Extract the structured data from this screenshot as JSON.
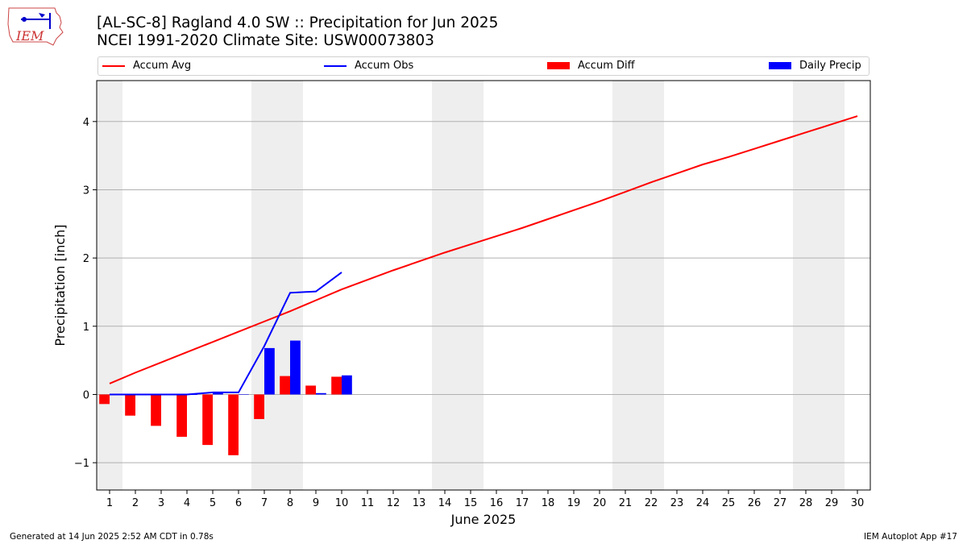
{
  "header": {
    "title_line1": "[AL-SC-8] Ragland 4.0 SW :: Precipitation for Jun 2025",
    "title_line2": "NCEI 1991-2020 Climate Site: USW00073803"
  },
  "logo": {
    "text": "IEM"
  },
  "legend": {
    "placement": "top, spanning plot width",
    "items": [
      {
        "label": "Accum Avg",
        "kind": "line",
        "color": "#ff0000"
      },
      {
        "label": "Accum Obs",
        "kind": "line",
        "color": "#0000ff"
      },
      {
        "label": "Accum Diff",
        "kind": "bar",
        "color": "#ff0000"
      },
      {
        "label": "Daily Precip",
        "kind": "bar",
        "color": "#0000ff"
      }
    ]
  },
  "chart_data": {
    "type": "bar",
    "xlabel": "June 2025",
    "ylabel": "Precipitation [inch]",
    "xlim": [
      0.5,
      30.5
    ],
    "ylim": [
      -1.4,
      4.6
    ],
    "yticks": [
      -1,
      0,
      1,
      2,
      3,
      4
    ],
    "ytick_labels": [
      "−1",
      "0",
      "1",
      "2",
      "3",
      "4"
    ],
    "x": [
      1,
      2,
      3,
      4,
      5,
      6,
      7,
      8,
      9,
      10,
      11,
      12,
      13,
      14,
      15,
      16,
      17,
      18,
      19,
      20,
      21,
      22,
      23,
      24,
      25,
      26,
      27,
      28,
      29,
      30
    ],
    "grid": "horizontal",
    "weekend_shading": [
      [
        0.5,
        1.5
      ],
      [
        6.5,
        8.5
      ],
      [
        13.5,
        15.5
      ],
      [
        20.5,
        22.5
      ],
      [
        27.5,
        29.5
      ]
    ],
    "series": [
      {
        "name": "Accum Avg",
        "kind": "line",
        "color": "#ff0000",
        "x": [
          1,
          2,
          3,
          4,
          5,
          6,
          7,
          8,
          9,
          10,
          11,
          12,
          13,
          14,
          15,
          16,
          17,
          18,
          19,
          20,
          21,
          22,
          23,
          24,
          25,
          26,
          27,
          28,
          29,
          30
        ],
        "values": [
          0.16,
          0.32,
          0.47,
          0.62,
          0.77,
          0.92,
          1.07,
          1.22,
          1.38,
          1.54,
          1.68,
          1.82,
          1.95,
          2.08,
          2.2,
          2.32,
          2.44,
          2.57,
          2.7,
          2.83,
          2.97,
          3.11,
          3.24,
          3.37,
          3.48,
          3.6,
          3.72,
          3.84,
          3.96,
          4.08
        ]
      },
      {
        "name": "Accum Obs",
        "kind": "line",
        "color": "#0000ff",
        "x": [
          1,
          2,
          3,
          4,
          5,
          6,
          7,
          8,
          9,
          10
        ],
        "values": [
          0.0,
          0.0,
          0.0,
          0.0,
          0.03,
          0.03,
          0.71,
          1.49,
          1.51,
          1.79
        ]
      },
      {
        "name": "Accum Diff",
        "kind": "bar",
        "color": "#ff0000",
        "x": [
          1,
          2,
          3,
          4,
          5,
          6,
          7,
          8,
          9,
          10
        ],
        "values": [
          -0.14,
          -0.31,
          -0.46,
          -0.62,
          -0.74,
          -0.89,
          -0.36,
          0.27,
          0.13,
          0.26
        ]
      },
      {
        "name": "Daily Precip",
        "kind": "bar",
        "color": "#0000ff",
        "x": [
          1,
          2,
          3,
          4,
          5,
          6,
          7,
          8,
          9,
          10
        ],
        "values": [
          0.0,
          0.0,
          0.0,
          0.0,
          0.03,
          0.0,
          0.68,
          0.79,
          0.02,
          0.28
        ]
      }
    ]
  },
  "footer": {
    "left": "Generated at 14 Jun 2025 2:52 AM CDT in 0.78s",
    "right": "IEM Autoplot App #17"
  }
}
